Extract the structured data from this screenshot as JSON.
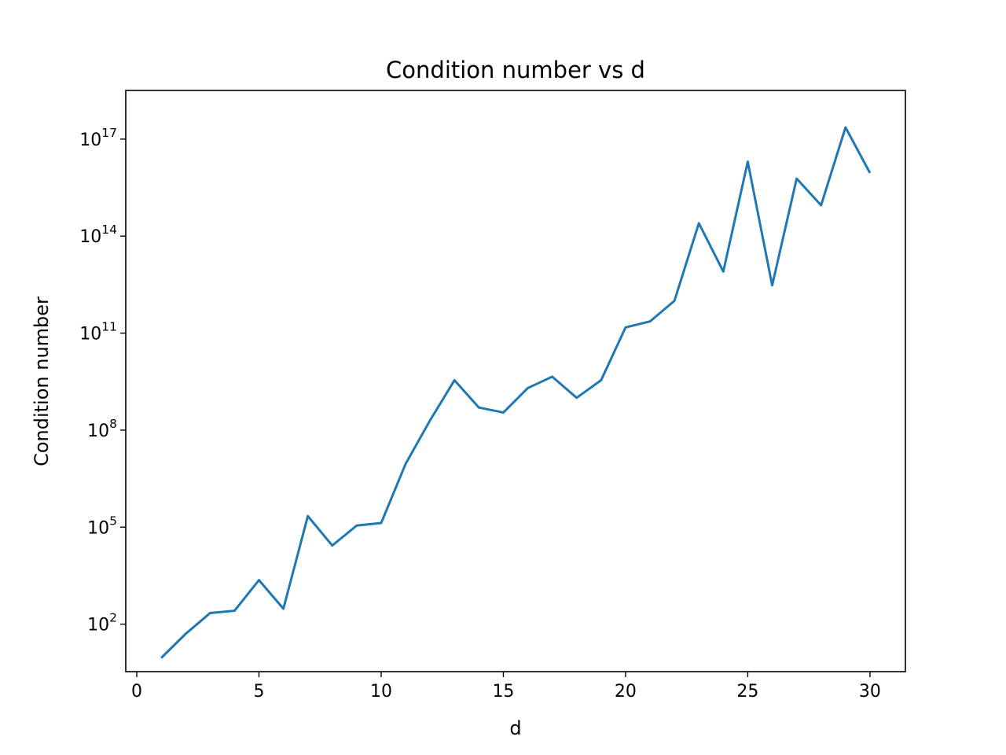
{
  "chart_data": {
    "type": "line",
    "title": "Condition number vs d",
    "xlabel": "d",
    "ylabel": "Condition number",
    "xscale": "linear",
    "yscale": "log",
    "grid": false,
    "legend": "none",
    "xlim": [
      -0.45,
      31.45
    ],
    "ylim": [
      3.4,
      3.2e+18
    ],
    "xticks": [
      {
        "value": 0,
        "label": "0"
      },
      {
        "value": 5,
        "label": "5"
      },
      {
        "value": 10,
        "label": "10"
      },
      {
        "value": 15,
        "label": "15"
      },
      {
        "value": 20,
        "label": "20"
      },
      {
        "value": 25,
        "label": "25"
      },
      {
        "value": 30,
        "label": "30"
      }
    ],
    "yticks": [
      {
        "value": 100.0,
        "base": "10",
        "exponent": "2"
      },
      {
        "value": 100000.0,
        "base": "10",
        "exponent": "5"
      },
      {
        "value": 100000000.0,
        "base": "10",
        "exponent": "8"
      },
      {
        "value": 100000000000.0,
        "base": "10",
        "exponent": "11"
      },
      {
        "value": 100000000000000.0,
        "base": "10",
        "exponent": "14"
      },
      {
        "value": 1e+17,
        "base": "10",
        "exponent": "17"
      }
    ],
    "series": [
      {
        "color": "#1f77b4",
        "x": [
          1,
          2,
          3,
          4,
          5,
          6,
          7,
          8,
          9,
          10,
          11,
          12,
          13,
          14,
          15,
          16,
          17,
          18,
          19,
          20,
          21,
          22,
          23,
          24,
          25,
          26,
          27,
          28,
          29,
          30
        ],
        "y": [
          9,
          50,
          220,
          260,
          2300,
          300,
          220000,
          27000,
          112000,
          134000,
          9000000,
          200000000,
          3500000000,
          500000000,
          350000000,
          2000000000,
          4500000000,
          1000000000,
          3500000000,
          150000000000,
          230000000000,
          1000000000000,
          250000000000000,
          8000000000000,
          20000000000000000,
          3000000000000,
          6000000000000000,
          900000000000000,
          230000000000000000,
          9000000000000000
        ]
      }
    ]
  }
}
